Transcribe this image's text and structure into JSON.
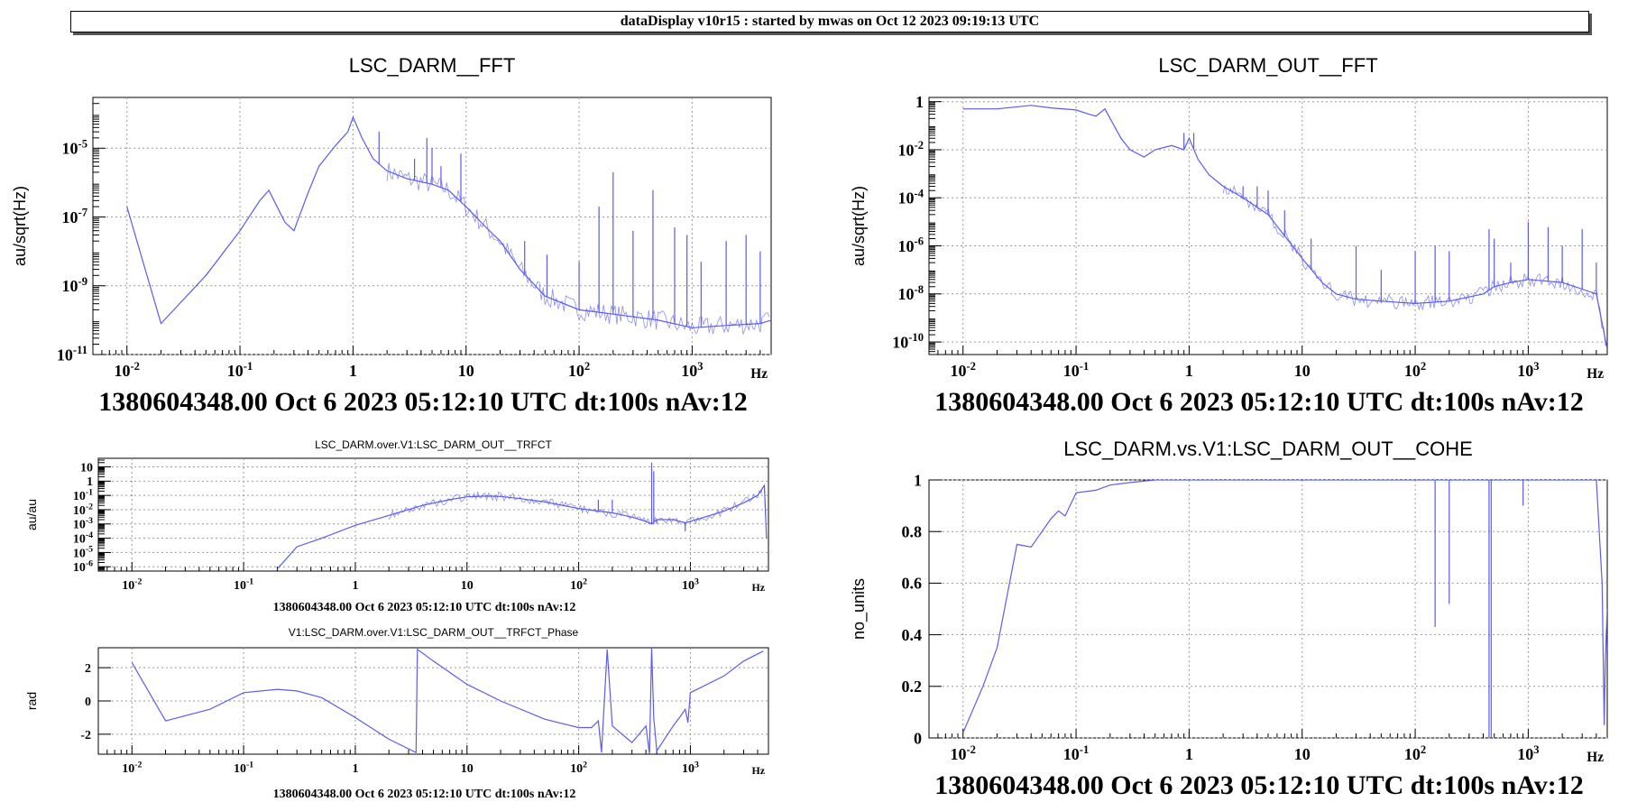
{
  "header": {
    "banner": "dataDisplay v10r15 : started by mwas on Oct 12 2023 09:19:13 UTC"
  },
  "chart_data": [
    {
      "id": "p1",
      "type": "line",
      "title": "LSC_DARM__FFT",
      "ylabel": "au/sqrt(Hz)",
      "xlabel": "Hz",
      "xscale": "log",
      "yscale": "log",
      "xlim": [
        0.005,
        5000
      ],
      "ylim": [
        1e-11,
        0.0003
      ],
      "xticks": [
        "10-2",
        "10-1",
        "1",
        "10",
        "102",
        "103"
      ],
      "yticks": [
        "10-11",
        "10-9",
        "10-7",
        "10-5"
      ],
      "footer": "1380604348.00 Oct 6 2023 05:12:10 UTC dt:100s nAv:12",
      "color": "#5b5bf0",
      "series": [
        {
          "x": [
            0.01,
            0.02,
            0.05,
            0.1,
            0.15,
            0.18,
            0.2,
            0.25,
            0.3,
            0.4,
            0.5,
            0.7,
            0.9,
            1,
            1.2,
            1.5,
            2,
            3,
            5,
            7,
            10,
            15,
            20,
            30,
            50,
            100,
            200,
            500,
            1000,
            2000,
            4000,
            5000
          ],
          "y": [
            2e-07,
            8e-11,
            2e-09,
            4e-08,
            3e-07,
            6e-07,
            3e-07,
            7e-08,
            4e-08,
            5e-07,
            3e-06,
            1.2e-05,
            3e-05,
            8e-05,
            2e-05,
            5e-06,
            2.2e-06,
            1.3e-06,
            9e-07,
            6e-07,
            2e-07,
            5e-08,
            2e-08,
            3e-09,
            5e-10,
            2e-10,
            1.5e-10,
            1e-10,
            6e-11,
            7e-11,
            8e-11,
            1e-10
          ]
        }
      ],
      "spikes": [
        [
          1.7,
          3e-05
        ],
        [
          3.5,
          5e-06
        ],
        [
          4.5,
          2e-05
        ],
        [
          5,
          1e-05
        ],
        [
          6,
          3e-06
        ],
        [
          9,
          7e-06
        ],
        [
          33,
          2e-08
        ],
        [
          52,
          8e-09
        ],
        [
          100,
          5e-09
        ],
        [
          150,
          2e-07
        ],
        [
          200,
          2e-06
        ],
        [
          300,
          4e-08
        ],
        [
          450,
          6e-07
        ],
        [
          700,
          5e-08
        ],
        [
          900,
          3e-08
        ],
        [
          1200,
          5e-09
        ],
        [
          2000,
          2e-08
        ],
        [
          3000,
          3e-08
        ],
        [
          4000,
          1e-08
        ]
      ]
    },
    {
      "id": "p2",
      "type": "line",
      "title": "LSC_DARM_OUT__FFT",
      "ylabel": "au/sqrt(Hz)",
      "xlabel": "Hz",
      "xscale": "log",
      "yscale": "log",
      "xlim": [
        0.005,
        5000
      ],
      "ylim": [
        3e-11,
        1.5
      ],
      "xticks": [
        "10-2",
        "10-1",
        "1",
        "10",
        "102",
        "103"
      ],
      "yticks": [
        "10-10",
        "10-8",
        "10-6",
        "10-4",
        "10-2",
        "1"
      ],
      "footer": "1380604348.00 Oct 6 2023 05:12:10 UTC dt:100s nAv:12",
      "color": "#5b5bf0",
      "series": [
        {
          "x": [
            0.01,
            0.02,
            0.04,
            0.06,
            0.1,
            0.13,
            0.15,
            0.18,
            0.2,
            0.25,
            0.3,
            0.4,
            0.5,
            0.7,
            0.9,
            1,
            1.2,
            1.5,
            2,
            3,
            5,
            10,
            15,
            20,
            30,
            50,
            100,
            200,
            400,
            500,
            700,
            1000,
            2000,
            4000,
            5000
          ],
          "y": [
            0.5,
            0.5,
            0.7,
            0.55,
            0.45,
            0.3,
            0.25,
            0.5,
            0.2,
            0.03,
            0.01,
            0.005,
            0.01,
            0.015,
            0.01,
            0.03,
            0.004,
            0.0009,
            0.0003,
            0.0001,
            2e-05,
            3e-07,
            3e-08,
            1e-08,
            6e-09,
            5e-09,
            4e-09,
            5e-09,
            1e-08,
            2e-08,
            3e-08,
            4e-08,
            3e-08,
            1e-08,
            5e-11
          ]
        }
      ],
      "spikes": [
        [
          0.9,
          0.05
        ],
        [
          1.1,
          0.05
        ],
        [
          3,
          0.0003
        ],
        [
          4,
          0.0003
        ],
        [
          5,
          0.0002
        ],
        [
          7,
          3e-05
        ],
        [
          12,
          2e-06
        ],
        [
          30,
          1e-06
        ],
        [
          50,
          1e-07
        ],
        [
          100,
          6e-07
        ],
        [
          150,
          1e-06
        ],
        [
          200,
          6e-07
        ],
        [
          450,
          5e-06
        ],
        [
          500,
          2e-06
        ],
        [
          700,
          2e-07
        ],
        [
          1000,
          1e-05
        ],
        [
          1500,
          6e-06
        ],
        [
          2000,
          1e-06
        ],
        [
          3000,
          5e-06
        ],
        [
          4000,
          2e-07
        ]
      ]
    },
    {
      "id": "p3",
      "type": "line",
      "title": "LSC_DARM.over.V1:LSC_DARM_OUT__TRFCT",
      "ylabel": "au/au",
      "xlabel": "Hz",
      "xscale": "log",
      "yscale": "log",
      "xlim": [
        0.005,
        5000
      ],
      "ylim": [
        5e-07,
        40
      ],
      "xticks": [
        "10-2",
        "10-1",
        "1",
        "10",
        "102",
        "103"
      ],
      "yticks": [
        "10-6",
        "10-5",
        "10-4",
        "10-3",
        "10-2",
        "10-1",
        "1",
        "10"
      ],
      "footer": "1380604348.00 Oct 6 2023 05:12:10 UTC dt:100s nAv:12",
      "color": "#5b5bf0",
      "series": [
        {
          "x": [
            0.2,
            0.3,
            0.5,
            1,
            2,
            4,
            7,
            10,
            15,
            20,
            30,
            50,
            100,
            150,
            200,
            300,
            400,
            450,
            500,
            700,
            900,
            1000,
            1500,
            2000,
            3000,
            4000,
            4600,
            4800
          ],
          "y": [
            7e-07,
            2.5e-05,
            0.0001,
            0.0008,
            0.004,
            0.02,
            0.05,
            0.08,
            0.09,
            0.085,
            0.06,
            0.035,
            0.012,
            0.008,
            0.006,
            0.003,
            0.0015,
            0.001,
            0.002,
            0.002,
            0.0012,
            0.0015,
            0.004,
            0.008,
            0.03,
            0.1,
            0.5,
            0.0001
          ]
        }
      ],
      "spikes": [
        [
          150,
          0.05
        ],
        [
          200,
          0.05
        ],
        [
          450,
          20
        ],
        [
          470,
          5
        ],
        [
          500,
          0.001
        ],
        [
          900,
          0.0003
        ]
      ]
    },
    {
      "id": "p4",
      "type": "line",
      "title": "V1:LSC_DARM.over.V1:LSC_DARM_OUT__TRFCT_Phase",
      "ylabel": "rad",
      "xlabel": "Hz",
      "xscale": "log",
      "yscale": "linear",
      "xlim": [
        0.005,
        5000
      ],
      "ylim": [
        -3.2,
        3.2
      ],
      "xticks": [
        "10-2",
        "10-1",
        "1",
        "10",
        "102",
        "103"
      ],
      "yticks": [
        "-2",
        "0",
        "2"
      ],
      "ytickvals": [
        -2,
        0,
        2
      ],
      "footer": "1380604348.00 Oct 6 2023 05:12:10 UTC dt:100s nAv:12",
      "color": "#5b5bf0",
      "series": [
        {
          "x": [
            0.01,
            0.02,
            0.05,
            0.1,
            0.2,
            0.3,
            0.5,
            1,
            2,
            3.5,
            3.6,
            5,
            10,
            20,
            50,
            100,
            130,
            150,
            160,
            180,
            200,
            300,
            400,
            430,
            450,
            470,
            500,
            700,
            800,
            900,
            950,
            1000,
            2000,
            3000,
            4500
          ],
          "y": [
            2.3,
            -1.2,
            -0.5,
            0.5,
            0.7,
            0.6,
            0.2,
            -1,
            -2.3,
            -3.1,
            3.1,
            2.4,
            1,
            0,
            -1.1,
            -1.6,
            -1.6,
            -1.2,
            -3.1,
            3.1,
            -1.5,
            -2.5,
            -1.5,
            -3.2,
            3.2,
            -1,
            -3,
            -1.5,
            -1,
            -0.5,
            -1.3,
            0.5,
            1.5,
            2.4,
            3
          ]
        }
      ],
      "spikes": []
    },
    {
      "id": "p5",
      "type": "line",
      "title": "LSC_DARM.vs.V1:LSC_DARM_OUT__COHE",
      "ylabel": "no_units",
      "xlabel": "Hz",
      "xscale": "log",
      "yscale": "linear",
      "xlim": [
        0.005,
        5000
      ],
      "ylim": [
        0,
        1
      ],
      "xticks": [
        "10-2",
        "10-1",
        "1",
        "10",
        "102",
        "103"
      ],
      "yticks": [
        "0",
        "0.2",
        "0.4",
        "0.6",
        "0.8",
        "1"
      ],
      "ytickvals": [
        0,
        0.2,
        0.4,
        0.6,
        0.8,
        1
      ],
      "footer": "1380604348.00 Oct 6 2023 05:12:10 UTC dt:100s nAv:12",
      "color": "#5b5bf0",
      "series": [
        {
          "x": [
            0.01,
            0.015,
            0.02,
            0.03,
            0.04,
            0.05,
            0.06,
            0.07,
            0.08,
            0.1,
            0.15,
            0.2,
            0.3,
            0.5,
            1,
            2,
            5,
            10,
            50,
            100,
            200,
            500,
            1000,
            2000,
            4000,
            4500,
            4700,
            4800,
            5000
          ],
          "y": [
            0.02,
            0.2,
            0.35,
            0.75,
            0.74,
            0.8,
            0.85,
            0.88,
            0.86,
            0.95,
            0.96,
            0.98,
            0.99,
            1,
            1,
            1,
            1,
            1,
            1,
            1,
            1,
            1,
            1,
            1,
            1,
            0.6,
            0.05,
            0.3,
            0.5
          ]
        }
      ],
      "spikes": [
        [
          150,
          0.43
        ],
        [
          200,
          0.52
        ],
        [
          450,
          0.0
        ],
        [
          470,
          0.0
        ],
        [
          900,
          0.9
        ]
      ]
    }
  ]
}
